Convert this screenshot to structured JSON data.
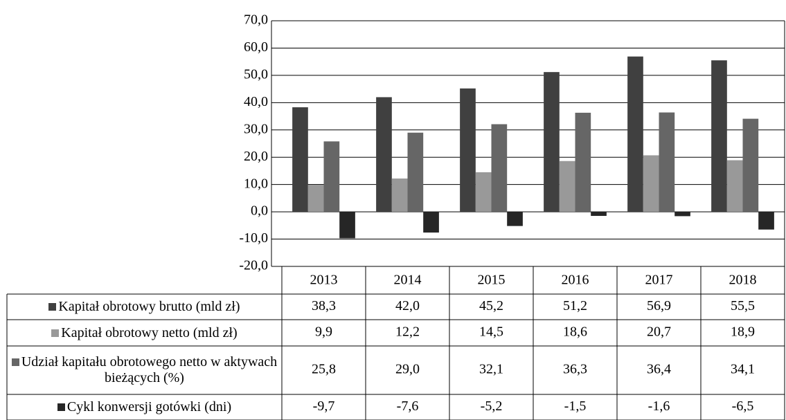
{
  "chart_data": {
    "type": "bar",
    "categories": [
      "2013",
      "2014",
      "2015",
      "2016",
      "2017",
      "2018"
    ],
    "series": [
      {
        "name": "Kapitał obrotowy brutto (mld zł)",
        "color": "#404040",
        "values": [
          38.3,
          42.0,
          45.2,
          51.2,
          56.9,
          55.5
        ],
        "value_labels": [
          "38,3",
          "42,0",
          "45,2",
          "51,2",
          "56,9",
          "55,5"
        ]
      },
      {
        "name": "Kapitał obrotowy netto (mld zł)",
        "color": "#999999",
        "values": [
          9.9,
          12.2,
          14.5,
          18.6,
          20.7,
          18.9
        ],
        "value_labels": [
          "9,9",
          "12,2",
          "14,5",
          "18,6",
          "20,7",
          "18,9"
        ]
      },
      {
        "name": "Udział kapitału obrotowego netto w aktywach bieżących (%)",
        "color": "#666666",
        "values": [
          25.8,
          29.0,
          32.1,
          36.3,
          36.4,
          34.1
        ],
        "value_labels": [
          "25,8",
          "29,0",
          "32,1",
          "36,3",
          "36,4",
          "34,1"
        ]
      },
      {
        "name": "Cykl konwersji gotówki (dni)",
        "color": "#262626",
        "values": [
          -9.7,
          -7.6,
          -5.2,
          -1.5,
          -1.6,
          -6.5
        ],
        "value_labels": [
          "-9,7",
          "-7,6",
          "-5,2",
          "-1,5",
          "-1,6",
          "-6,5"
        ]
      }
    ],
    "ylim": [
      -20,
      70
    ],
    "yticks": [
      {
        "value": -20,
        "label": "-20,0"
      },
      {
        "value": -10,
        "label": "-10,0"
      },
      {
        "value": 0,
        "label": "0,0"
      },
      {
        "value": 10,
        "label": "10,0"
      },
      {
        "value": 20,
        "label": "20,0"
      },
      {
        "value": 30,
        "label": "30,0"
      },
      {
        "value": 40,
        "label": "40,0"
      },
      {
        "value": 50,
        "label": "50,0"
      },
      {
        "value": 60,
        "label": "60,0"
      },
      {
        "value": 70,
        "label": "70,0"
      }
    ],
    "grid": true
  }
}
